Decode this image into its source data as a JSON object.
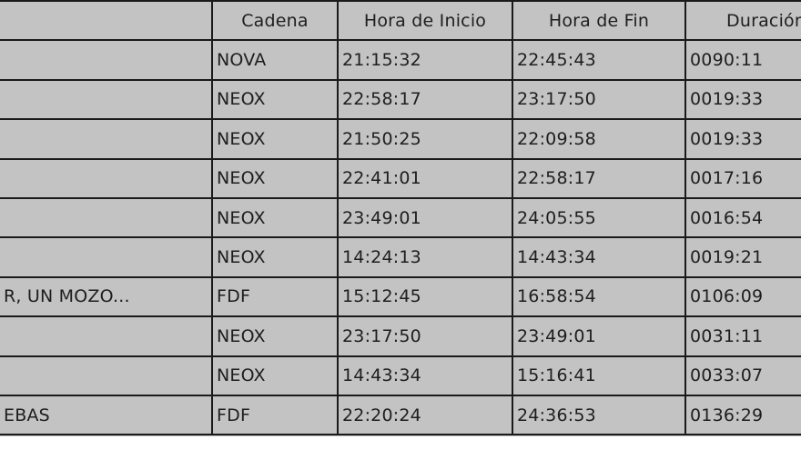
{
  "table": {
    "headers": [
      "",
      "Cadena",
      "Hora de Inicio",
      "Hora de Fin",
      "Duración"
    ],
    "rows": [
      [
        "",
        "NOVA",
        "21:15:32",
        "22:45:43",
        "0090:11"
      ],
      [
        "",
        "NEOX",
        "22:58:17",
        "23:17:50",
        "0019:33"
      ],
      [
        "",
        "NEOX",
        "21:50:25",
        "22:09:58",
        "0019:33"
      ],
      [
        "",
        "NEOX",
        "22:41:01",
        "22:58:17",
        "0017:16"
      ],
      [
        "",
        "NEOX",
        "23:49:01",
        "24:05:55",
        "0016:54"
      ],
      [
        "",
        "NEOX",
        "14:24:13",
        "14:43:34",
        "0019:21"
      ],
      [
        "R, UN MOZO...",
        "FDF",
        "15:12:45",
        "16:58:54",
        "0106:09"
      ],
      [
        "",
        "NEOX",
        "23:17:50",
        "23:49:01",
        "0031:11"
      ],
      [
        "",
        "NEOX",
        "14:43:34",
        "15:16:41",
        "0033:07"
      ],
      [
        "EBAS",
        "FDF",
        "22:20:24",
        "24:36:53",
        "0136:29"
      ]
    ]
  },
  "colors": {
    "cell_background": "#c3c3c3",
    "grid_line": "#1a1a1a"
  }
}
